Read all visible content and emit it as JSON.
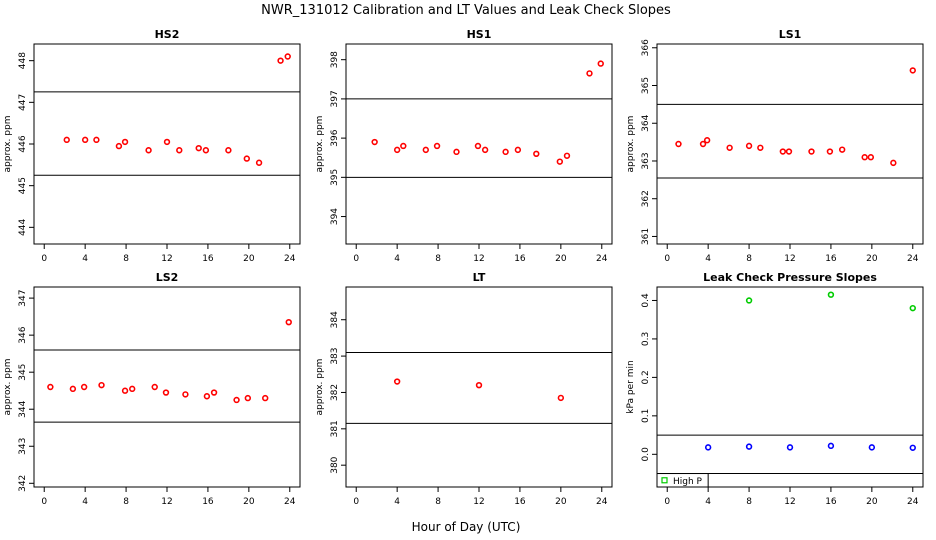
{
  "figure": {
    "title": "NWR_131012  Calibration and LT Values and Leak Check Slopes",
    "xlabel": "Hour of Day (UTC)"
  },
  "colors": {
    "calibration": "#ff0000",
    "leak_high": "#00cc00",
    "leak_low": "#0000ff",
    "lines": "#000000"
  },
  "chart_data": [
    {
      "type": "scatter",
      "title": "HS2",
      "ylabel": "approx. ppm",
      "xlim": [
        -1,
        25
      ],
      "ylim": [
        443.6,
        448.4
      ],
      "xticks": [
        0,
        4,
        8,
        12,
        16,
        20,
        24
      ],
      "yticks": [
        444,
        445,
        446,
        447,
        448
      ],
      "hlines": [
        445.25,
        447.25
      ],
      "series": [
        {
          "marker": "circle",
          "color": "#ff0000",
          "x": [
            2.2,
            4.0,
            5.1,
            7.3,
            7.9,
            10.2,
            12.0,
            13.2,
            15.1,
            15.8,
            18.0,
            19.8,
            21.0,
            23.1,
            23.8
          ],
          "y": [
            446.1,
            446.1,
            446.1,
            445.95,
            446.05,
            445.85,
            446.05,
            445.85,
            445.9,
            445.85,
            445.85,
            445.65,
            445.55,
            448.0,
            448.1
          ]
        }
      ]
    },
    {
      "type": "scatter",
      "title": "HS1",
      "ylabel": "approx. ppm",
      "xlim": [
        -1,
        25
      ],
      "ylim": [
        393.3,
        398.4
      ],
      "xticks": [
        0,
        4,
        8,
        12,
        16,
        20,
        24
      ],
      "yticks": [
        394,
        395,
        396,
        397,
        398
      ],
      "hlines": [
        395.0,
        397.0
      ],
      "series": [
        {
          "marker": "circle",
          "color": "#ff0000",
          "x": [
            1.8,
            4.0,
            4.6,
            6.8,
            7.9,
            9.8,
            11.9,
            12.6,
            14.6,
            15.8,
            17.6,
            19.9,
            20.6,
            22.8,
            23.9
          ],
          "y": [
            395.9,
            395.7,
            395.8,
            395.7,
            395.8,
            395.65,
            395.8,
            395.7,
            395.65,
            395.7,
            395.6,
            395.4,
            395.55,
            397.65,
            397.9
          ]
        }
      ]
    },
    {
      "type": "scatter",
      "title": "LS1",
      "ylabel": "approx. ppm",
      "xlim": [
        -1,
        25
      ],
      "ylim": [
        360.8,
        366.1
      ],
      "xticks": [
        0,
        4,
        8,
        12,
        16,
        20,
        24
      ],
      "yticks": [
        361,
        362,
        363,
        364,
        365,
        366
      ],
      "hlines": [
        362.55,
        364.5
      ],
      "series": [
        {
          "marker": "circle",
          "color": "#ff0000",
          "x": [
            1.1,
            3.5,
            3.9,
            6.1,
            8.0,
            9.1,
            11.3,
            11.9,
            14.1,
            15.9,
            17.1,
            19.3,
            19.9,
            22.1,
            24.0
          ],
          "y": [
            363.45,
            363.45,
            363.55,
            363.35,
            363.4,
            363.35,
            363.25,
            363.25,
            363.25,
            363.25,
            363.3,
            363.1,
            363.1,
            362.95,
            365.4
          ]
        }
      ]
    },
    {
      "type": "scatter",
      "title": "LS2",
      "ylabel": "approx. ppm",
      "xlim": [
        -1,
        25
      ],
      "ylim": [
        341.9,
        347.3
      ],
      "xticks": [
        0,
        4,
        8,
        12,
        16,
        20,
        24
      ],
      "yticks": [
        342,
        343,
        344,
        345,
        346,
        347
      ],
      "hlines": [
        343.65,
        345.6
      ],
      "series": [
        {
          "marker": "circle",
          "color": "#ff0000",
          "x": [
            0.6,
            2.8,
            3.9,
            5.6,
            7.9,
            8.6,
            10.8,
            11.9,
            13.8,
            15.9,
            16.6,
            18.8,
            19.9,
            21.6,
            23.9
          ],
          "y": [
            344.6,
            344.55,
            344.6,
            344.65,
            344.5,
            344.55,
            344.6,
            344.45,
            344.4,
            344.35,
            344.45,
            344.25,
            344.3,
            344.3,
            346.35
          ]
        }
      ]
    },
    {
      "type": "scatter",
      "title": "LT",
      "ylabel": "approx. ppm",
      "xlim": [
        -1,
        25
      ],
      "ylim": [
        379.4,
        384.9
      ],
      "xticks": [
        0,
        4,
        8,
        12,
        16,
        20,
        24
      ],
      "yticks": [
        380,
        381,
        382,
        383,
        384
      ],
      "hlines": [
        381.15,
        383.1
      ],
      "series": [
        {
          "marker": "circle",
          "color": "#ff0000",
          "x": [
            4.0,
            12.0,
            20.0
          ],
          "y": [
            382.3,
            382.2,
            381.85
          ]
        }
      ]
    },
    {
      "type": "scatter",
      "title": "Leak Check Pressure Slopes",
      "ylabel": "kPa per min",
      "xlim": [
        -1,
        25
      ],
      "ylim": [
        -0.085,
        0.435
      ],
      "xticks": [
        0,
        4,
        8,
        12,
        16,
        20,
        24
      ],
      "yticks": [
        0.0,
        0.1,
        0.2,
        0.3,
        0.4
      ],
      "ytick_labels": [
        "0.0",
        "0.1",
        "0.2",
        "0.3",
        "0.4"
      ],
      "hlines": [
        0.05,
        -0.05
      ],
      "legend": {
        "placement": "bottom-left",
        "entries": [
          {
            "label": "High P",
            "color": "#00cc00",
            "marker": "square"
          }
        ]
      },
      "series": [
        {
          "name": "High P",
          "marker": "circle",
          "color": "#00cc00",
          "x": [
            8.0,
            16.0,
            24.0
          ],
          "y": [
            0.4,
            0.415,
            0.38
          ]
        },
        {
          "marker": "circle",
          "color": "#0000ff",
          "x": [
            4.0,
            8.0,
            12.0,
            16.0,
            20.0,
            24.0
          ],
          "y": [
            0.018,
            0.02,
            0.018,
            0.022,
            0.018,
            0.017
          ]
        }
      ]
    }
  ]
}
